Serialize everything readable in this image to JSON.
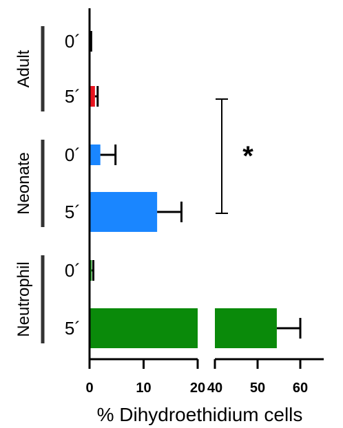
{
  "chart_data": {
    "type": "bar",
    "orientation": "horizontal",
    "xlabel": "% Dihydroethidium cells",
    "axis_break": {
      "from": 20,
      "to": 40
    },
    "xticks": [
      0,
      10,
      20,
      40,
      50,
      60
    ],
    "xlim": [
      0,
      65
    ],
    "groups": [
      {
        "name": "Adult",
        "color": "#e8141e",
        "categories": [
          "0´",
          "5´"
        ],
        "values": [
          0.2,
          1.0
        ],
        "errors": [
          0.1,
          0.5
        ]
      },
      {
        "name": "Neonate",
        "color": "#1a86ff",
        "categories": [
          "0´",
          "5´"
        ],
        "values": [
          2.0,
          12.5
        ],
        "errors": [
          2.8,
          4.5
        ]
      },
      {
        "name": "Neutrophil",
        "color": "#0a8a0a",
        "categories": [
          "0´",
          "5´"
        ],
        "values": [
          0.4,
          54.5
        ],
        "errors": [
          0.3,
          5.5
        ]
      }
    ],
    "significance": {
      "label": "*",
      "between": [
        "Adult 5´",
        "Neonate 5´"
      ]
    }
  }
}
